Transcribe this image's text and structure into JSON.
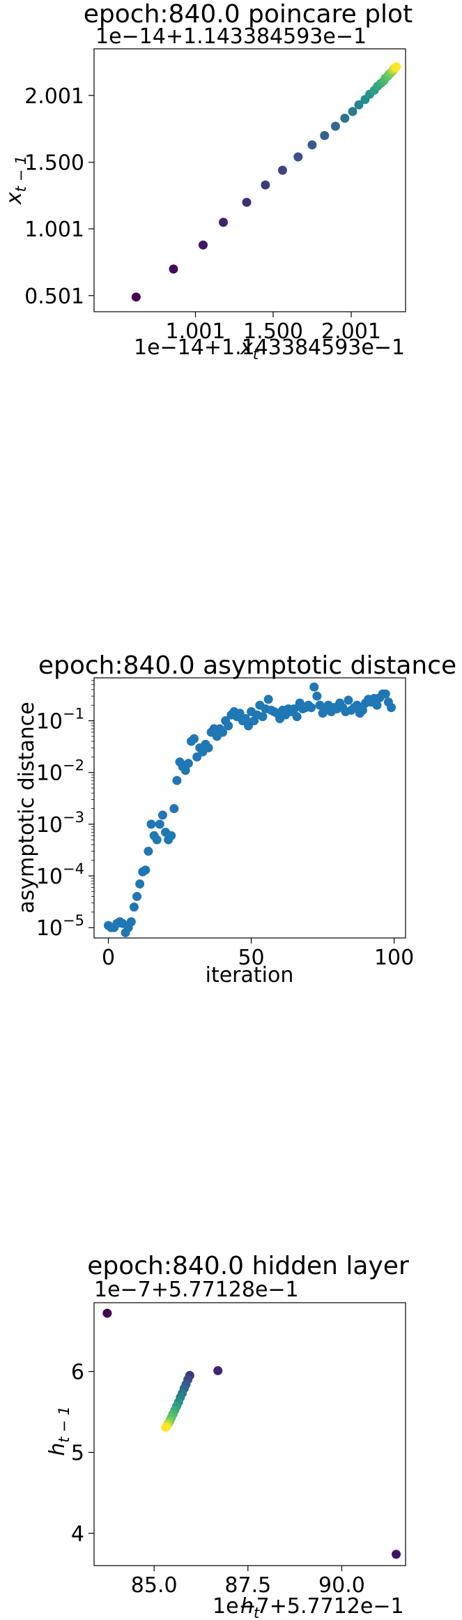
{
  "chart_data": [
    {
      "type": "scatter",
      "title": "epoch:840.0 poincare plot",
      "offset_label_y": "1e−14+1.143384593e−1",
      "offset_label_x": "1e−14+1.143384593e−1",
      "xlabel_main": "x",
      "xlabel_sub": "t",
      "ylabel_main": "x",
      "ylabel_sub": "t − 1",
      "xlim": [
        0.35,
        2.35
      ],
      "ylim": [
        0.38,
        2.35
      ],
      "xticks": [
        1.001,
        1.5,
        2.001
      ],
      "xtick_labels": [
        "1.001",
        "1.500",
        "2.001"
      ],
      "yticks": [
        0.501,
        1.001,
        1.5,
        2.001
      ],
      "ytick_labels": [
        "0.501",
        "1.001",
        "1.500",
        "2.001"
      ],
      "colormap": "viridis",
      "colors": [
        "#440154",
        "#3b528b",
        "#21918c",
        "#5ec962",
        "#fde725"
      ],
      "points": [
        {
          "x": 0.62,
          "y": 0.49
        },
        {
          "x": 0.86,
          "y": 0.7
        },
        {
          "x": 1.05,
          "y": 0.88
        },
        {
          "x": 1.18,
          "y": 1.05
        },
        {
          "x": 1.33,
          "y": 1.2
        },
        {
          "x": 1.45,
          "y": 1.33
        },
        {
          "x": 1.56,
          "y": 1.44
        },
        {
          "x": 1.66,
          "y": 1.54
        },
        {
          "x": 1.75,
          "y": 1.63
        },
        {
          "x": 1.83,
          "y": 1.7
        },
        {
          "x": 1.9,
          "y": 1.77
        },
        {
          "x": 1.96,
          "y": 1.83
        },
        {
          "x": 2.01,
          "y": 1.88
        },
        {
          "x": 2.05,
          "y": 1.93
        },
        {
          "x": 2.09,
          "y": 1.97
        },
        {
          "x": 2.12,
          "y": 2.01
        },
        {
          "x": 2.15,
          "y": 2.04
        },
        {
          "x": 2.17,
          "y": 2.07
        },
        {
          "x": 2.19,
          "y": 2.09
        },
        {
          "x": 2.21,
          "y": 2.11
        },
        {
          "x": 2.22,
          "y": 2.13
        },
        {
          "x": 2.235,
          "y": 2.145
        },
        {
          "x": 2.245,
          "y": 2.16
        },
        {
          "x": 2.255,
          "y": 2.17
        },
        {
          "x": 2.265,
          "y": 2.18
        },
        {
          "x": 2.27,
          "y": 2.19
        },
        {
          "x": 2.275,
          "y": 2.2
        },
        {
          "x": 2.28,
          "y": 2.205
        },
        {
          "x": 2.285,
          "y": 2.21
        },
        {
          "x": 2.29,
          "y": 2.215
        }
      ]
    },
    {
      "type": "scatter",
      "title": "epoch:840.0 asymptotic distance",
      "xlabel": "iteration",
      "ylabel": "asymptotic distance",
      "yscale": "log",
      "xlim": [
        -5,
        104
      ],
      "ylim_log10": [
        -5.2,
        -0.17
      ],
      "xticks": [
        0,
        50,
        100
      ],
      "xtick_labels": [
        "0",
        "50",
        "100"
      ],
      "ytick_exponents": [
        -5,
        -4,
        -3,
        -2,
        -1
      ],
      "color": "#1f77b4",
      "values": [
        1.1e-05,
        1e-05,
        1e-05,
        1.2e-05,
        1.3e-05,
        1.2e-05,
        8e-06,
        1e-05,
        1.3e-05,
        2.5e-05,
        4e-05,
        7e-05,
        0.00012,
        0.00013,
        0.0003,
        0.001,
        0.0006,
        0.0005,
        0.001,
        0.0015,
        0.0007,
        0.0005,
        0.0006,
        0.002,
        0.007,
        0.016,
        0.013,
        0.011,
        0.015,
        0.04,
        0.045,
        0.02,
        0.03,
        0.025,
        0.035,
        0.03,
        0.06,
        0.07,
        0.05,
        0.07,
        0.06,
        0.1,
        0.08,
        0.13,
        0.15,
        0.12,
        0.14,
        0.1,
        0.11,
        0.08,
        0.15,
        0.1,
        0.13,
        0.2,
        0.12,
        0.17,
        0.26,
        0.16,
        0.15,
        0.14,
        0.11,
        0.16,
        0.13,
        0.17,
        0.15,
        0.17,
        0.12,
        0.22,
        0.17,
        0.18,
        0.2,
        0.18,
        0.45,
        0.3,
        0.2,
        0.14,
        0.16,
        0.2,
        0.15,
        0.18,
        0.17,
        0.22,
        0.18,
        0.15,
        0.25,
        0.16,
        0.18,
        0.2,
        0.14,
        0.16,
        0.22,
        0.26,
        0.23,
        0.27,
        0.2,
        0.28,
        0.33,
        0.33,
        0.23,
        0.18
      ]
    },
    {
      "type": "scatter",
      "title": "epoch:840.0 hidden layer",
      "offset_label_y": "1e−7+5.77128e−1",
      "offset_label_x": "1e−7+5.7712e−1",
      "xlabel_main": "h",
      "xlabel_sub": "t",
      "ylabel_main": "h",
      "ylabel_sub": "t − 1",
      "xlim": [
        83.4,
        91.7
      ],
      "ylim": [
        3.6,
        6.85
      ],
      "xticks": [
        85.0,
        87.5,
        90.0
      ],
      "xtick_labels": [
        "85.0",
        "87.5",
        "90.0"
      ],
      "yticks": [
        4,
        5,
        6
      ],
      "ytick_labels": [
        "4",
        "5",
        "6"
      ],
      "colormap": "viridis",
      "colors": [
        "#440154",
        "#3b528b",
        "#21918c",
        "#5ec962",
        "#fde725"
      ],
      "points": [
        {
          "x": 83.75,
          "y": 6.72
        },
        {
          "x": 91.45,
          "y": 3.74
        },
        {
          "x": 86.7,
          "y": 6.01
        },
        {
          "x": 85.95,
          "y": 5.95
        },
        {
          "x": 85.9,
          "y": 5.9
        },
        {
          "x": 85.85,
          "y": 5.84
        },
        {
          "x": 85.8,
          "y": 5.79
        },
        {
          "x": 85.75,
          "y": 5.73
        },
        {
          "x": 85.7,
          "y": 5.68
        },
        {
          "x": 85.65,
          "y": 5.62
        },
        {
          "x": 85.6,
          "y": 5.57
        },
        {
          "x": 85.55,
          "y": 5.52
        },
        {
          "x": 85.5,
          "y": 5.47
        },
        {
          "x": 85.46,
          "y": 5.43
        },
        {
          "x": 85.42,
          "y": 5.39
        },
        {
          "x": 85.38,
          "y": 5.36
        },
        {
          "x": 85.35,
          "y": 5.34
        },
        {
          "x": 85.33,
          "y": 5.32
        },
        {
          "x": 85.31,
          "y": 5.31
        }
      ]
    }
  ]
}
